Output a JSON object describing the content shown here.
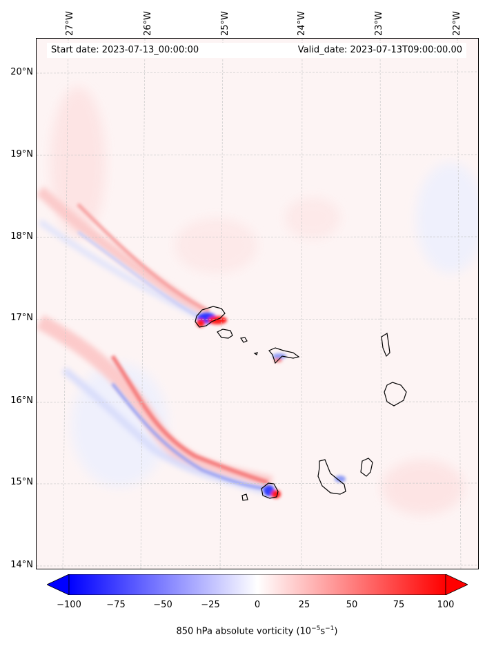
{
  "map": {
    "start_label": "Start date: 2023-07-13_00:00:00",
    "valid_label": "Valid_date: 2023-07-13T09:00:00.00",
    "lon_labels": [
      "27°W",
      "26°W",
      "25°W",
      "24°W",
      "23°W",
      "22°W"
    ],
    "lat_labels": [
      "20°N",
      "19°N",
      "18°N",
      "17°N",
      "16°N",
      "15°N",
      "14°N"
    ],
    "extent": {
      "lon_min": -27.33,
      "lon_max": -21.78,
      "lat_min": 13.95,
      "lat_max": 20.43
    }
  },
  "colorbar": {
    "title_prefix": "850 hPa absolute vorticity (10",
    "title_exp1": "−5",
    "title_mid": "s",
    "title_exp2": "−1",
    "title_suffix": ")",
    "ticks": [
      "−100",
      "−75",
      "−50",
      "−25",
      "0",
      "25",
      "50",
      "75",
      "100"
    ],
    "vmin": -100,
    "vmax": 100,
    "neg_color": "#0000ff",
    "pos_color": "#ff0000",
    "mid_color": "#ffffff"
  },
  "colors": {
    "background_field": "#fdf7f7",
    "grid": "#cccccc",
    "coast": "#000000"
  }
}
